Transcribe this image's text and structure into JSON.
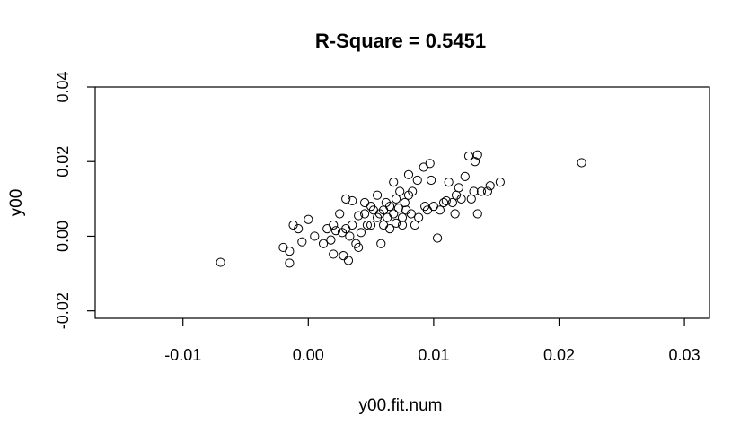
{
  "chart_data": {
    "type": "scatter",
    "title": "R-Square = 0.5451",
    "xlabel": "y00.fit.num",
    "ylabel": "y00",
    "xlim": [
      -0.017,
      0.032
    ],
    "ylim": [
      -0.022,
      0.04
    ],
    "xticks": [
      -0.01,
      0.0,
      0.01,
      0.02,
      0.03
    ],
    "xtick_labels": [
      "-0.01",
      "0.00",
      "0.01",
      "0.02",
      "0.03"
    ],
    "yticks": [
      -0.02,
      0.0,
      0.02,
      0.04
    ],
    "ytick_labels": [
      "-0.02",
      "0.00",
      "0.02",
      "0.04"
    ],
    "grid": false,
    "points": [
      {
        "x": -0.007,
        "y": -0.007
      },
      {
        "x": 0.0218,
        "y": 0.0197
      },
      {
        "x": -0.002,
        "y": -0.003
      },
      {
        "x": -0.0015,
        "y": -0.004
      },
      {
        "x": -0.0015,
        "y": -0.0072
      },
      {
        "x": -0.0012,
        "y": 0.003
      },
      {
        "x": -0.0008,
        "y": 0.002
      },
      {
        "x": -0.0005,
        "y": -0.0015
      },
      {
        "x": 0.0,
        "y": 0.0045
      },
      {
        "x": 0.0005,
        "y": 0.0
      },
      {
        "x": 0.0012,
        "y": -0.002
      },
      {
        "x": 0.0015,
        "y": 0.002
      },
      {
        "x": 0.0018,
        "y": -0.001
      },
      {
        "x": 0.002,
        "y": 0.003
      },
      {
        "x": 0.002,
        "y": -0.0048
      },
      {
        "x": 0.0022,
        "y": 0.0015
      },
      {
        "x": 0.0025,
        "y": 0.006
      },
      {
        "x": 0.0027,
        "y": 0.001
      },
      {
        "x": 0.0028,
        "y": -0.0052
      },
      {
        "x": 0.003,
        "y": 0.01
      },
      {
        "x": 0.003,
        "y": 0.002
      },
      {
        "x": 0.0032,
        "y": -0.0065
      },
      {
        "x": 0.0033,
        "y": 0.0
      },
      {
        "x": 0.0035,
        "y": 0.0095
      },
      {
        "x": 0.0035,
        "y": 0.003
      },
      {
        "x": 0.0038,
        "y": -0.002
      },
      {
        "x": 0.004,
        "y": 0.0055
      },
      {
        "x": 0.004,
        "y": -0.003
      },
      {
        "x": 0.0042,
        "y": 0.001
      },
      {
        "x": 0.0045,
        "y": 0.009
      },
      {
        "x": 0.0045,
        "y": 0.006
      },
      {
        "x": 0.0047,
        "y": 0.003
      },
      {
        "x": 0.005,
        "y": 0.008
      },
      {
        "x": 0.005,
        "y": 0.003
      },
      {
        "x": 0.0052,
        "y": 0.007
      },
      {
        "x": 0.0055,
        "y": 0.011
      },
      {
        "x": 0.0055,
        "y": 0.005
      },
      {
        "x": 0.0057,
        "y": 0.006
      },
      {
        "x": 0.0058,
        "y": -0.002
      },
      {
        "x": 0.006,
        "y": 0.007
      },
      {
        "x": 0.006,
        "y": 0.003
      },
      {
        "x": 0.0062,
        "y": 0.009
      },
      {
        "x": 0.0063,
        "y": 0.005
      },
      {
        "x": 0.0065,
        "y": 0.008
      },
      {
        "x": 0.0065,
        "y": 0.002
      },
      {
        "x": 0.0068,
        "y": 0.0145
      },
      {
        "x": 0.0068,
        "y": 0.006
      },
      {
        "x": 0.007,
        "y": 0.01
      },
      {
        "x": 0.007,
        "y": 0.0035
      },
      {
        "x": 0.0072,
        "y": 0.0075
      },
      {
        "x": 0.0073,
        "y": 0.012
      },
      {
        "x": 0.0075,
        "y": 0.005
      },
      {
        "x": 0.0075,
        "y": 0.003
      },
      {
        "x": 0.0077,
        "y": 0.009
      },
      {
        "x": 0.0078,
        "y": 0.007
      },
      {
        "x": 0.008,
        "y": 0.0165
      },
      {
        "x": 0.008,
        "y": 0.011
      },
      {
        "x": 0.0082,
        "y": 0.006
      },
      {
        "x": 0.0083,
        "y": 0.012
      },
      {
        "x": 0.0085,
        "y": 0.003
      },
      {
        "x": 0.0087,
        "y": 0.015
      },
      {
        "x": 0.0088,
        "y": 0.005
      },
      {
        "x": 0.0092,
        "y": 0.0185
      },
      {
        "x": 0.0093,
        "y": 0.008
      },
      {
        "x": 0.0095,
        "y": 0.007
      },
      {
        "x": 0.0097,
        "y": 0.0195
      },
      {
        "x": 0.0098,
        "y": 0.015
      },
      {
        "x": 0.01,
        "y": 0.008
      },
      {
        "x": 0.0103,
        "y": -0.0005
      },
      {
        "x": 0.0105,
        "y": 0.007
      },
      {
        "x": 0.0108,
        "y": 0.009
      },
      {
        "x": 0.011,
        "y": 0.0095
      },
      {
        "x": 0.0112,
        "y": 0.0145
      },
      {
        "x": 0.0115,
        "y": 0.009
      },
      {
        "x": 0.0117,
        "y": 0.006
      },
      {
        "x": 0.0118,
        "y": 0.011
      },
      {
        "x": 0.012,
        "y": 0.013
      },
      {
        "x": 0.0122,
        "y": 0.01
      },
      {
        "x": 0.0125,
        "y": 0.016
      },
      {
        "x": 0.0128,
        "y": 0.0215
      },
      {
        "x": 0.013,
        "y": 0.01
      },
      {
        "x": 0.0132,
        "y": 0.012
      },
      {
        "x": 0.0133,
        "y": 0.02
      },
      {
        "x": 0.0135,
        "y": 0.0218
      },
      {
        "x": 0.0135,
        "y": 0.006
      },
      {
        "x": 0.0138,
        "y": 0.012
      },
      {
        "x": 0.0143,
        "y": 0.012
      },
      {
        "x": 0.0145,
        "y": 0.0135
      },
      {
        "x": 0.0153,
        "y": 0.0145
      }
    ]
  }
}
